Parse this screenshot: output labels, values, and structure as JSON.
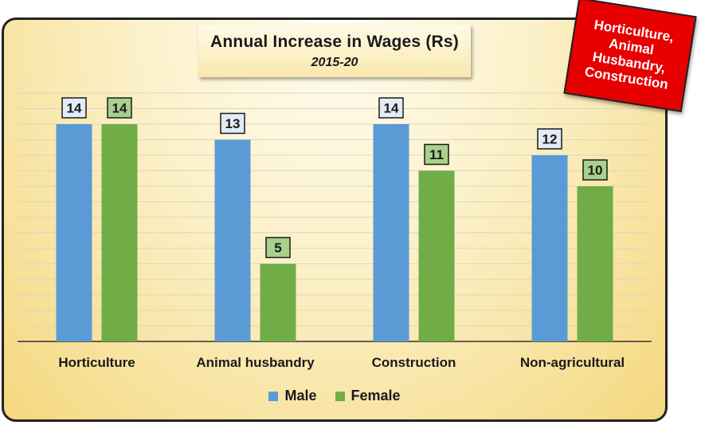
{
  "chart_data": {
    "type": "bar",
    "title": "Annual Increase in Wages (Rs)",
    "subtitle": "2015-20",
    "categories": [
      "Horticulture",
      "Animal husbandry",
      "Construction",
      "Non-agricultural"
    ],
    "series": [
      {
        "name": "Male",
        "values": [
          14,
          13,
          14,
          12
        ],
        "color": "#5b9bd5"
      },
      {
        "name": "Female",
        "values": [
          14,
          5,
          11,
          10
        ],
        "color": "#70ad47"
      }
    ],
    "ylim": [
      0,
      16
    ],
    "grid": true,
    "legend": "bottom"
  },
  "callout": {
    "text": "Horticulture,\nAnimal\nHusbandry,\nConstruction",
    "color": "#e60000"
  }
}
